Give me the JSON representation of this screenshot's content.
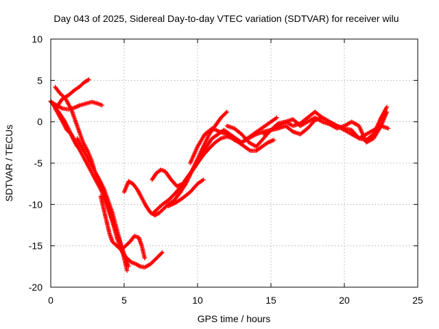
{
  "chart_data": {
    "type": "scatter",
    "title": "Day 043 of 2025, Sidereal Day-to-day VTEC variation (SDTVAR) for receiver wilu",
    "xlabel": "GPS time / hours",
    "ylabel": "SDTVAR / TECUs",
    "xlim": [
      0,
      25
    ],
    "ylim": [
      -20,
      10
    ],
    "xticks": [
      "0",
      "5",
      "10",
      "15",
      "20",
      "25"
    ],
    "yticks": [
      "10",
      "5",
      "0",
      "-5",
      "-10",
      "-15",
      "-20"
    ],
    "grid": true,
    "legend": "none",
    "marker": "plus",
    "color": "#ff0000",
    "series": [
      {
        "x": [
          0.3,
          0.8,
          1.2,
          1.6,
          2.0,
          2.3,
          2.6
        ],
        "y": [
          1.5,
          2.8,
          3.2,
          3.8,
          4.3,
          4.8,
          5.1
        ]
      },
      {
        "x": [
          0.0,
          0.4,
          0.8,
          1.2,
          1.6,
          2.0,
          2.4,
          2.8,
          3.2,
          3.5
        ],
        "y": [
          2.4,
          2.0,
          1.6,
          1.5,
          1.7,
          2.0,
          2.2,
          2.4,
          2.2,
          2.0
        ]
      },
      {
        "x": [
          0.0,
          0.3,
          0.6,
          0.9,
          1.2,
          1.5,
          1.8
        ],
        "y": [
          2.5,
          1.8,
          1.0,
          0.2,
          -0.8,
          -2.0,
          -3.0
        ]
      },
      {
        "x": [
          0.3,
          0.6,
          1.0,
          1.4,
          1.8,
          2.2,
          2.5,
          2.8,
          3.0,
          3.3,
          3.6,
          3.9,
          4.2,
          4.5,
          4.8,
          5.0,
          5.2
        ],
        "y": [
          4.2,
          3.5,
          2.8,
          1.5,
          -0.5,
          -2.5,
          -3.5,
          -4.8,
          -6.0,
          -7.0,
          -8.0,
          -9.5,
          -11.0,
          -13.0,
          -15.0,
          -16.5,
          -18.0
        ]
      },
      {
        "x": [
          0.2,
          0.5,
          0.8,
          1.1,
          1.4,
          1.7,
          2.0,
          2.3,
          2.6,
          2.9,
          3.2,
          3.5,
          3.8,
          4.1,
          4.4,
          4.7,
          5.0,
          5.3
        ],
        "y": [
          2.0,
          1.0,
          0.0,
          -1.0,
          -1.5,
          -2.5,
          -3.5,
          -4.5,
          -5.5,
          -6.5,
          -7.5,
          -8.5,
          -10.0,
          -11.5,
          -13.0,
          -14.5,
          -16.0,
          -17.5
        ]
      },
      {
        "x": [
          1.8,
          2.1,
          2.4,
          2.7,
          3.0,
          3.3,
          3.6,
          3.9,
          4.2,
          4.5,
          4.8,
          5.0,
          5.2,
          5.5,
          5.8,
          6.1,
          6.4,
          6.8,
          7.2,
          7.6
        ],
        "y": [
          -2.0,
          -3.0,
          -4.0,
          -5.0,
          -6.0,
          -7.0,
          -8.5,
          -10.0,
          -12.0,
          -14.0,
          -15.5,
          -16.2,
          -16.5,
          -17.0,
          -17.2,
          -17.5,
          -17.6,
          -17.2,
          -16.5,
          -15.8
        ]
      },
      {
        "x": [
          3.4,
          3.6,
          3.8,
          4.0,
          4.2,
          4.5,
          4.8,
          5.1,
          5.4,
          5.7,
          6.0,
          6.2,
          6.4
        ],
        "y": [
          -9.0,
          -10.5,
          -12.0,
          -13.5,
          -14.5,
          -15.0,
          -15.5,
          -15.0,
          -14.5,
          -13.8,
          -14.0,
          -15.0,
          -16.5
        ]
      },
      {
        "x": [
          5.0,
          5.3,
          5.6,
          5.9,
          6.2,
          6.5,
          6.8,
          7.1,
          7.4,
          7.7,
          8.0,
          8.4,
          8.8,
          9.2,
          9.6,
          10.0,
          10.4,
          10.8,
          11.2,
          11.6,
          12.0
        ],
        "y": [
          -8.5,
          -7.2,
          -7.5,
          -8.2,
          -9.2,
          -10.2,
          -11.0,
          -11.3,
          -11.0,
          -10.5,
          -10.0,
          -9.5,
          -8.6,
          -7.5,
          -6.0,
          -4.5,
          -3.0,
          -1.5,
          -0.5,
          0.5,
          1.2
        ]
      },
      {
        "x": [
          7.0,
          7.3,
          7.6,
          8.0,
          8.4,
          8.8,
          9.2,
          9.6,
          10.0,
          10.4,
          10.8,
          11.2,
          11.6,
          12.0,
          12.4,
          12.8,
          13.2,
          13.6,
          14.0,
          14.4,
          14.8,
          15.2
        ],
        "y": [
          -11.0,
          -10.5,
          -10.0,
          -9.5,
          -8.8,
          -8.0,
          -7.0,
          -6.0,
          -5.0,
          -4.0,
          -3.2,
          -2.5,
          -2.0,
          -1.8,
          -2.0,
          -2.5,
          -3.0,
          -3.5,
          -3.5,
          -3.0,
          -2.5,
          -2.2
        ]
      },
      {
        "x": [
          6.9,
          7.2,
          7.5,
          7.8,
          8.2,
          8.6,
          9.0,
          9.4,
          9.8,
          10.2,
          10.6,
          11.0,
          11.4,
          11.8,
          12.2,
          12.6,
          13.0,
          13.4,
          13.8,
          14.2,
          14.6,
          15.0,
          15.4
        ],
        "y": [
          -7.0,
          -6.2,
          -5.8,
          -6.0,
          -7.0,
          -7.8,
          -7.5,
          -6.5,
          -5.5,
          -4.2,
          -3.0,
          -2.0,
          -1.5,
          -1.0,
          -1.5,
          -2.0,
          -2.5,
          -2.0,
          -1.5,
          -1.0,
          -0.5,
          0.0,
          0.5
        ]
      },
      {
        "x": [
          8.0,
          8.5,
          9.0,
          9.5,
          10.0,
          10.4
        ],
        "y": [
          -10.2,
          -9.8,
          -9.2,
          -8.5,
          -7.5,
          -7.0
        ]
      },
      {
        "x": [
          9.5,
          10.0,
          10.5,
          11.0,
          11.5,
          12.0,
          12.5,
          13.0,
          13.5,
          14.0,
          14.5,
          15.0,
          15.5,
          16.0,
          16.5,
          17.0,
          17.5,
          18.0,
          18.5,
          19.0,
          19.5,
          20.0,
          20.5,
          21.0,
          21.5,
          22.0,
          22.5,
          23.0
        ],
        "y": [
          -5.0,
          -3.0,
          -1.5,
          -0.8,
          -1.2,
          -1.5,
          -2.2,
          -2.5,
          -2.0,
          -1.5,
          -1.2,
          -1.0,
          -0.5,
          0.0,
          -0.5,
          -0.2,
          0.5,
          1.2,
          0.5,
          0.0,
          -0.5,
          -1.0,
          -1.5,
          -2.0,
          -1.5,
          -1.0,
          -0.5,
          -0.8
        ]
      },
      {
        "x": [
          12.0,
          12.5,
          13.0,
          13.5,
          14.0,
          14.5,
          15.0,
          15.5,
          16.0,
          16.5,
          17.0,
          17.5,
          18.0,
          18.5,
          19.0,
          19.5,
          20.0,
          20.5,
          21.0,
          21.5,
          22.0,
          22.5,
          22.9
        ],
        "y": [
          -0.5,
          -0.8,
          -1.5,
          -2.5,
          -3.0,
          -2.0,
          -1.0,
          -0.8,
          -0.5,
          -1.2,
          -1.5,
          -0.8,
          0.2,
          0.5,
          0.0,
          -0.5,
          -0.8,
          -1.0,
          -2.0,
          -2.2,
          -1.5,
          0.5,
          1.8
        ]
      },
      {
        "x": [
          14.5,
          15.0,
          15.5,
          16.0,
          16.5,
          17.0,
          17.5,
          18.0,
          18.5,
          19.0,
          19.5,
          20.0,
          20.5,
          21.0,
          21.5,
          22.0,
          22.5,
          22.9
        ],
        "y": [
          -1.5,
          -1.0,
          -0.2,
          0.0,
          0.3,
          -0.5,
          0.0,
          0.5,
          0.0,
          -0.3,
          -0.8,
          -0.5,
          0.0,
          -0.5,
          -2.5,
          -2.0,
          -0.5,
          1.2
        ]
      }
    ]
  }
}
